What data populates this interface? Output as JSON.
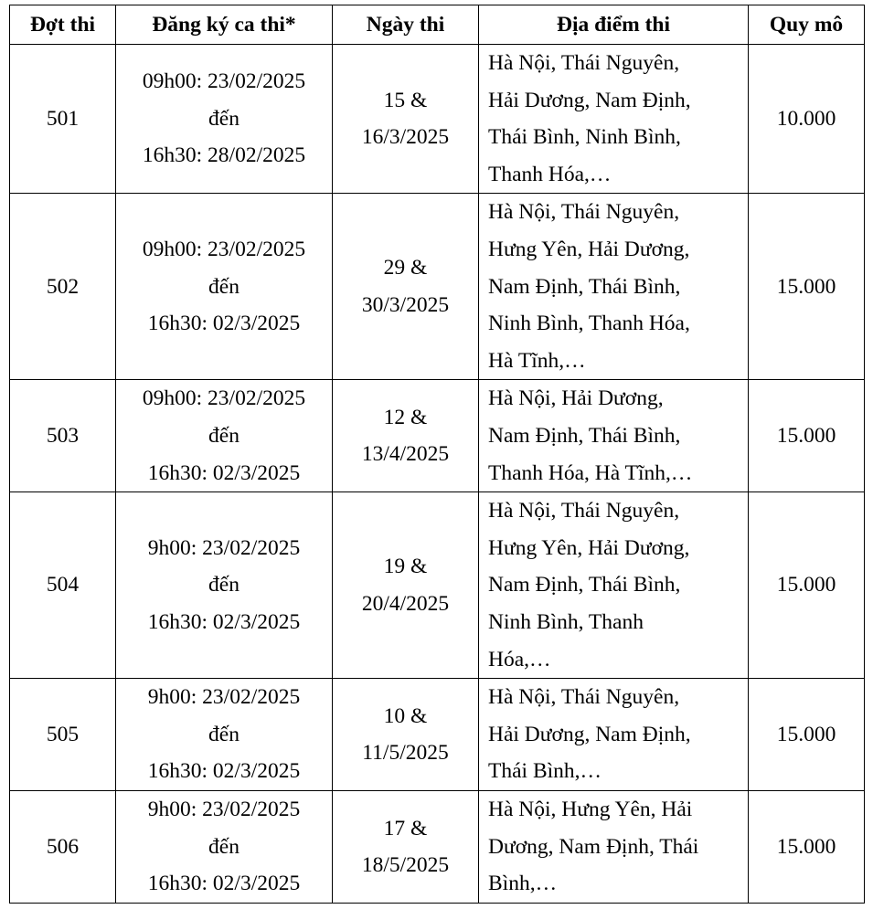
{
  "headers": [
    "Đợt thi",
    "Đăng ký ca thi*",
    "Ngày thi",
    "Địa điểm thi",
    "Quy mô"
  ],
  "rows": [
    {
      "dot": "501",
      "dangky": [
        "09h00: 23/02/2025",
        "đến",
        "16h30: 28/02/2025"
      ],
      "ngay": [
        "15 &",
        "16/3/2025"
      ],
      "diadiem": [
        "Hà Nội, Thái Nguyên,",
        "Hải Dương, Nam Định,",
        "Thái Bình, Ninh Bình,",
        "Thanh Hóa,…"
      ],
      "quymo": "10.000"
    },
    {
      "dot": "502",
      "dangky": [
        "09h00: 23/02/2025",
        "đến",
        "16h30: 02/3/2025"
      ],
      "ngay": [
        "29 &",
        "30/3/2025"
      ],
      "diadiem": [
        "Hà Nội, Thái Nguyên,",
        "Hưng Yên, Hải Dương,",
        "Nam Định, Thái Bình,",
        "Ninh Bình, Thanh Hóa,",
        "Hà Tĩnh,…"
      ],
      "quymo": "15.000"
    },
    {
      "dot": "503",
      "dangky": [
        "09h00: 23/02/2025",
        "đến",
        "16h30: 02/3/2025"
      ],
      "ngay": [
        "12 &",
        "13/4/2025"
      ],
      "diadiem": [
        "Hà Nội, Hải Dương,",
        "Nam Định, Thái Bình,",
        "Thanh Hóa, Hà Tĩnh,…"
      ],
      "quymo": "15.000"
    },
    {
      "dot": "504",
      "dangky": [
        "9h00: 23/02/2025",
        "đến",
        "16h30: 02/3/2025"
      ],
      "ngay": [
        "19 &",
        "20/4/2025"
      ],
      "diadiem": [
        "Hà Nội, Thái Nguyên,",
        "Hưng Yên, Hải Dương,",
        "Nam Định, Thái Bình,",
        "Ninh Bình, Thanh",
        "Hóa,…"
      ],
      "quymo": "15.000"
    },
    {
      "dot": "505",
      "dangky": [
        "9h00: 23/02/2025",
        "đến",
        "16h30: 02/3/2025"
      ],
      "ngay": [
        "10 &",
        "11/5/2025"
      ],
      "diadiem": [
        "Hà Nội, Thái Nguyên,",
        "Hải Dương, Nam Định,",
        "Thái Bình,…"
      ],
      "quymo": "15.000"
    },
    {
      "dot": "506",
      "dangky": [
        "9h00: 23/02/2025",
        "đến",
        "16h30: 02/3/2025"
      ],
      "ngay": [
        "17 &",
        "18/5/2025"
      ],
      "diadiem": [
        "Hà Nội, Hưng Yên, Hải",
        "Dương, Nam Định, Thái",
        "Bình,…"
      ],
      "quymo": "15.000"
    }
  ]
}
